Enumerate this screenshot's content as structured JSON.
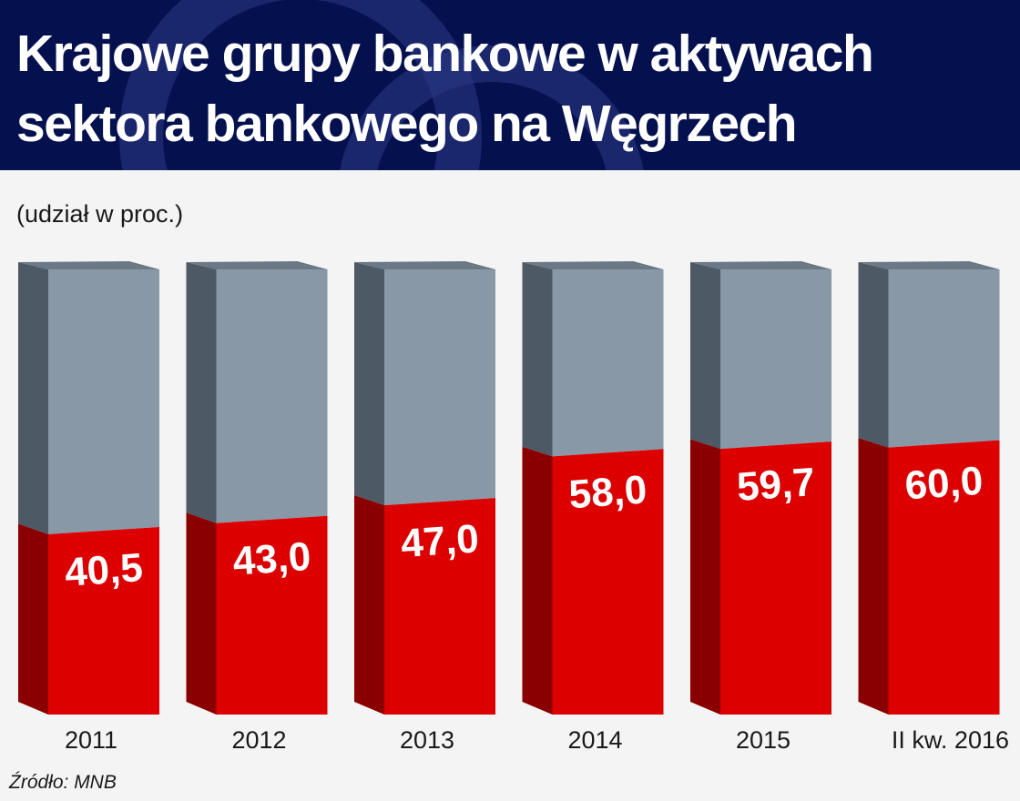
{
  "header": {
    "title_line1": "Krajowe grupy bankowe w aktywach",
    "title_line2": "sektora bankowego na Węgrzech",
    "background": "#05114f",
    "watermark_color": "#2b3a86"
  },
  "subtitle": "(udział w proc.)",
  "source": "Źródło: MNB",
  "colors": {
    "background": "#f4f4f4",
    "value_front": "#dc0000",
    "value_side": "#8a0000",
    "rest_front": "#8898a6",
    "rest_side": "#4e5966",
    "rest_top": "#6b7885"
  },
  "chart_data": {
    "type": "bar",
    "style": "3d-stacked-100-percent",
    "title": "Krajowe grupy bankowe w aktywach sektora bankowego na Węgrzech",
    "subtitle": "(udział w proc.)",
    "categories": [
      "2011",
      "2012",
      "2013",
      "2014",
      "2015",
      "II kw. 2016"
    ],
    "values": [
      40.5,
      43.0,
      47.0,
      58.0,
      59.7,
      60.0
    ],
    "value_labels": [
      "40,5",
      "43,0",
      "47,0",
      "58,0",
      "59,7",
      "60,0"
    ],
    "ylim": [
      0,
      100
    ],
    "grid": false,
    "legend": "none",
    "source": "Źródło: MNB"
  }
}
